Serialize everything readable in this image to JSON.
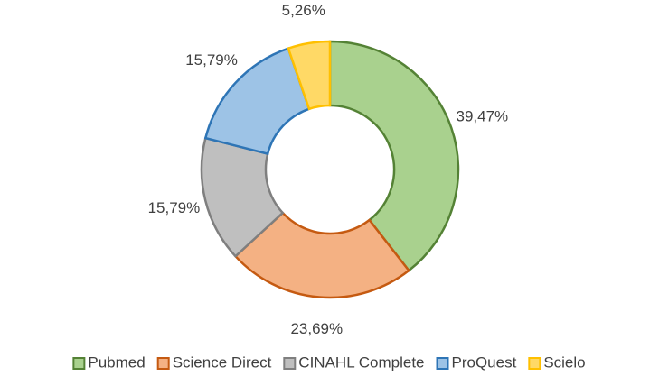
{
  "chart_data": {
    "type": "donut",
    "categories": [
      "Pubmed",
      "Science Direct",
      "CINAHL Complete",
      "ProQuest",
      "Scielo"
    ],
    "values": [
      39.47,
      23.69,
      15.79,
      15.79,
      5.26
    ],
    "value_labels": [
      "39,47%",
      "23,69%",
      "15,79%",
      "15,79%",
      "5,26%"
    ],
    "colors": [
      "#a9d18e",
      "#f4b183",
      "#bfbfbf",
      "#9dc3e6",
      "#ffd966"
    ],
    "edge_colors": [
      "#548235",
      "#c55a11",
      "#7f7f7f",
      "#2e75b6",
      "#ffc000"
    ],
    "legend": "bottom"
  }
}
